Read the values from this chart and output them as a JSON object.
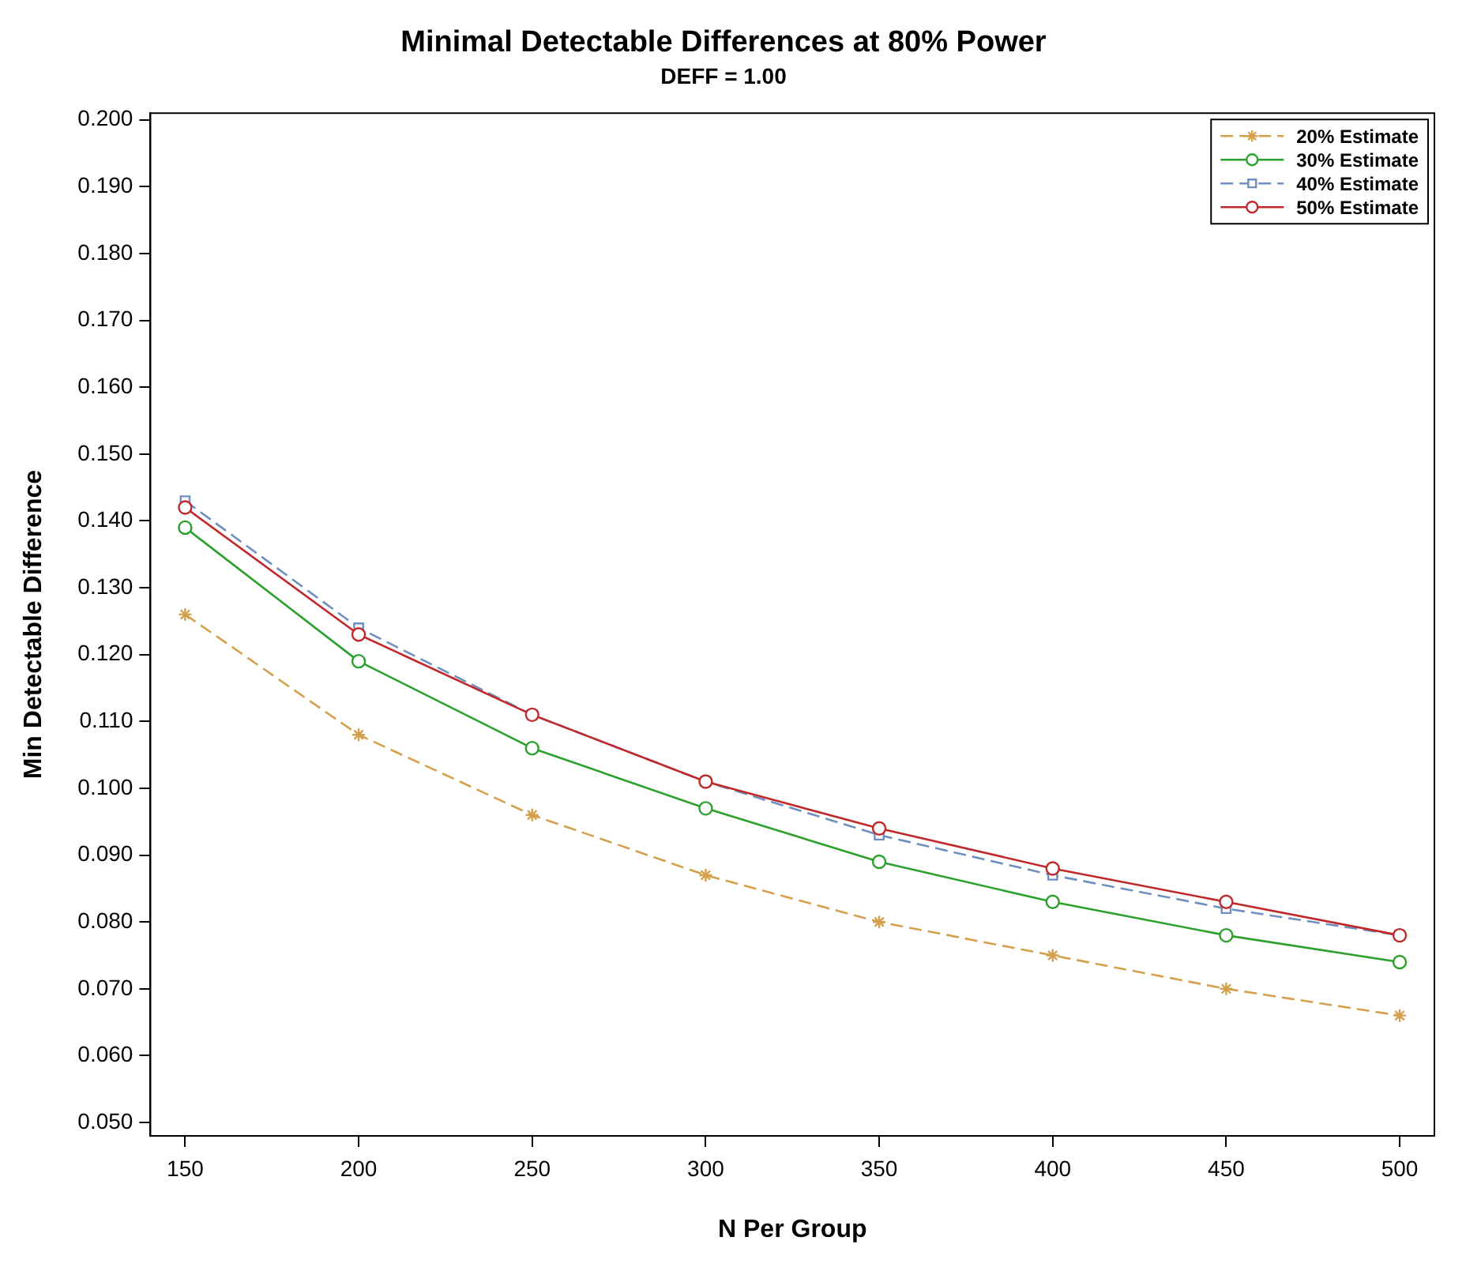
{
  "chart_data": {
    "type": "line",
    "title": "Minimal Detectable Differences at 80% Power",
    "subtitle": "DEFF = 1.00",
    "xlabel": "N Per Group",
    "ylabel": "Min Detectable Difference",
    "x": [
      150,
      200,
      250,
      300,
      350,
      400,
      450,
      500
    ],
    "xlim": [
      140,
      510
    ],
    "xticks": [
      150,
      200,
      250,
      300,
      350,
      400,
      450,
      500
    ],
    "ylim": [
      0.048,
      0.201
    ],
    "yticks": [
      {
        "value": 0.05,
        "label": "0.050"
      },
      {
        "value": 0.06,
        "label": "0.060"
      },
      {
        "value": 0.07,
        "label": "0.070"
      },
      {
        "value": 0.08,
        "label": "0.080"
      },
      {
        "value": 0.09,
        "label": "0.090"
      },
      {
        "value": 0.1,
        "label": "0.100"
      },
      {
        "value": 0.11,
        "label": "0.110"
      },
      {
        "value": 0.12,
        "label": "0.120"
      },
      {
        "value": 0.13,
        "label": "0.130"
      },
      {
        "value": 0.14,
        "label": "0.140"
      },
      {
        "value": 0.15,
        "label": "0.150"
      },
      {
        "value": 0.16,
        "label": "0.160"
      },
      {
        "value": 0.17,
        "label": "0.170"
      },
      {
        "value": 0.18,
        "label": "0.180"
      },
      {
        "value": 0.19,
        "label": "0.190"
      },
      {
        "value": 0.2,
        "label": "0.200"
      }
    ],
    "grid": false,
    "legend": "top right",
    "series": [
      {
        "name": "20% Estimate",
        "color": "#d4a04c",
        "marker": "cross",
        "line_style": "dashed",
        "values": [
          0.126,
          0.108,
          0.096,
          0.087,
          0.08,
          0.075,
          0.07,
          0.066
        ]
      },
      {
        "name": "30% Estimate",
        "color": "#2ca02c",
        "marker": "circle",
        "line_style": "solid",
        "values": [
          0.139,
          0.119,
          0.106,
          0.097,
          0.089,
          0.083,
          0.078,
          0.074
        ]
      },
      {
        "name": "40% Estimate",
        "color": "#6e8fc0",
        "marker": "square",
        "line_style": "dashed",
        "values": [
          0.143,
          0.124,
          0.111,
          0.101,
          0.093,
          0.087,
          0.082,
          0.078
        ]
      },
      {
        "name": "50% Estimate",
        "color": "#c0282a",
        "marker": "circle",
        "line_style": "solid",
        "values": [
          0.142,
          0.123,
          0.111,
          0.101,
          0.094,
          0.088,
          0.083,
          0.078
        ]
      }
    ]
  }
}
